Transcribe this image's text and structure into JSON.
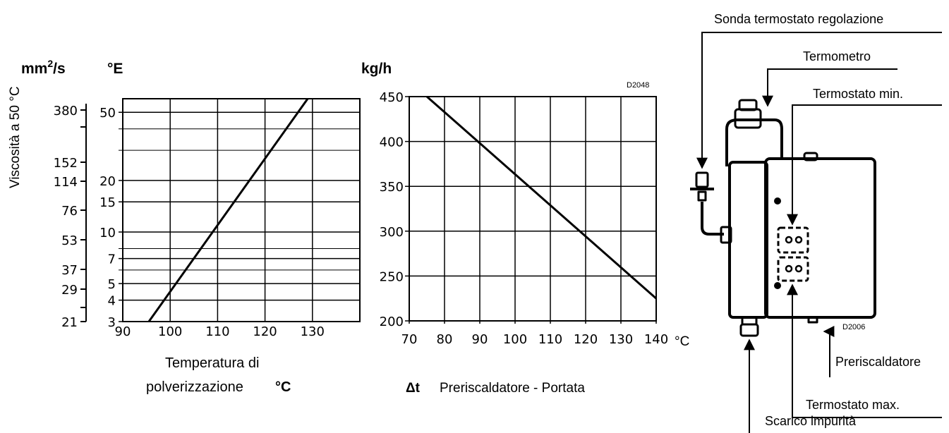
{
  "chart_data": [
    {
      "type": "line",
      "title": "",
      "xlabel": "Temperatura di polverizzazione °C",
      "xlabel_lines": [
        "Temperatura di",
        "polverizzazione"
      ],
      "xlabel_unit": "°C",
      "ylabel": "Viscosità a 50 °C",
      "y_unit_left": "mm²/s",
      "y_unit_left_base": "mm",
      "y_unit_left_sup": "2",
      "y_unit_left_tail": "/s",
      "y_unit_right": "°E",
      "yscale": "log",
      "xlim": [
        90,
        140
      ],
      "ylim_E": [
        3,
        60
      ],
      "x_ticks": [
        90,
        100,
        110,
        120,
        130
      ],
      "x_tick_labels": [
        "90",
        "100",
        "110",
        "120",
        "130"
      ],
      "y_ticks_E": [
        3,
        4,
        5,
        7,
        10,
        15,
        20,
        50
      ],
      "y_tick_labels_E": [
        "3",
        "4",
        "5",
        "7",
        "10",
        "15",
        "20",
        "50"
      ],
      "y_ticks_mm2s": [
        21,
        29,
        37,
        53,
        76,
        114,
        152,
        380
      ],
      "y_tick_labels_mm2s": [
        "21",
        "29",
        "37",
        "53",
        "76",
        "114",
        "152",
        "380"
      ],
      "series": [
        {
          "x": [
            95.5,
            129
          ],
          "y": [
            3,
            60
          ]
        }
      ],
      "grid": true
    },
    {
      "type": "line",
      "title": "",
      "code": "D2048",
      "xlabel": "Δt Preriscaldatore - Portata",
      "xlabel_symbol": "Δt",
      "xlabel_text": "Preriscaldatore - Portata",
      "x_unit": "°C",
      "y_unit": "kg/h",
      "xlim": [
        70,
        140
      ],
      "ylim": [
        200,
        450
      ],
      "x_ticks": [
        70,
        80,
        90,
        100,
        110,
        120,
        130,
        140
      ],
      "x_tick_labels": [
        "70",
        "80",
        "90",
        "100",
        "110",
        "120",
        "130",
        "140"
      ],
      "y_ticks": [
        200,
        250,
        300,
        350,
        400,
        450
      ],
      "y_tick_labels": [
        "200",
        "250",
        "300",
        "350",
        "400",
        "450"
      ],
      "series": [
        {
          "x": [
            75,
            140
          ],
          "y": [
            450,
            225
          ]
        }
      ],
      "grid": true
    }
  ],
  "diagram": {
    "code": "D2006",
    "labels": {
      "sonda": "Sonda termostato regolazione",
      "termometro": "Termometro",
      "termostato_min": "Termostato min.",
      "preriscaldatore": "Preriscaldatore",
      "termostato_max": "Termostato max.",
      "scarico": "Scarico impurità"
    }
  }
}
